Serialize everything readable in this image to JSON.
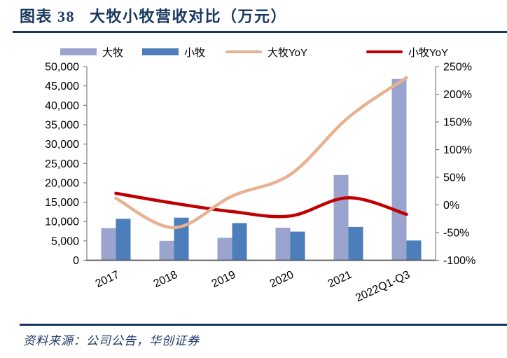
{
  "header": {
    "title": "图表 38   大牧小牧营收对比（万元）"
  },
  "footer": {
    "source": "资料来源：公司公告，华创证券"
  },
  "colors": {
    "navy": "#17375E",
    "bar_damu": "#9AA4CE",
    "bar_xiaomu": "#4C7EBB",
    "line_damu_yoy": "#E6B292",
    "line_xiaomu_yoy": "#C00000",
    "axis_gray": "#808080",
    "axis_dark": "#595959",
    "tick_text": "#000000"
  },
  "legend": {
    "items": [
      {
        "key": "damu",
        "label": "大牧",
        "swatch": "bar",
        "color_key": "bar_damu"
      },
      {
        "key": "xiaomu",
        "label": "小牧",
        "swatch": "bar",
        "color_key": "bar_xiaomu"
      },
      {
        "key": "damu-yoy",
        "label": "大牧YoY",
        "swatch": "line",
        "color_key": "line_damu_yoy"
      },
      {
        "key": "xiaomu-yoy",
        "label": "小牧YoY",
        "swatch": "line",
        "color_key": "line_xiaomu_yoy"
      }
    ]
  },
  "chart_data": {
    "type": "bar+line-combo",
    "title": "大牧小牧营收对比（万元）",
    "categories": [
      "2017",
      "2018",
      "2019",
      "2020",
      "2021",
      "2022Q1-Q3"
    ],
    "bar_series": [
      {
        "key": "damu",
        "name": "大牧",
        "axis": "left",
        "color_key": "bar_damu",
        "values": [
          8300,
          5000,
          5800,
          8400,
          22000,
          46800
        ]
      },
      {
        "key": "xiaomu",
        "name": "小牧",
        "axis": "left",
        "color_key": "bar_xiaomu",
        "values": [
          10700,
          11000,
          9600,
          7400,
          8600,
          5100
        ]
      }
    ],
    "line_series": [
      {
        "key": "damu-yoy",
        "name": "大牧YoY",
        "axis": "right",
        "color_key": "line_damu_yoy",
        "values_pct": [
          12,
          -41,
          16,
          55,
          158,
          230
        ]
      },
      {
        "key": "xiaomu-yoy",
        "name": "小牧YoY",
        "axis": "right",
        "color_key": "line_xiaomu_yoy",
        "values_pct": [
          21,
          3,
          -12,
          -20,
          13,
          -17
        ]
      }
    ],
    "left_axis": {
      "min": 0,
      "max": 50000,
      "step": 5000,
      "tick_labels": [
        "0",
        "5,000",
        "10,000",
        "15,000",
        "20,000",
        "25,000",
        "30,000",
        "35,000",
        "40,000",
        "45,000",
        "50,000"
      ]
    },
    "right_axis": {
      "min": -100,
      "max": 250,
      "step": 50,
      "tick_labels": [
        "-100%",
        "-50%",
        "0%",
        "50%",
        "100%",
        "150%",
        "200%",
        "250%"
      ]
    },
    "smooth_lines": true,
    "grid": false,
    "legend_position": "top"
  }
}
